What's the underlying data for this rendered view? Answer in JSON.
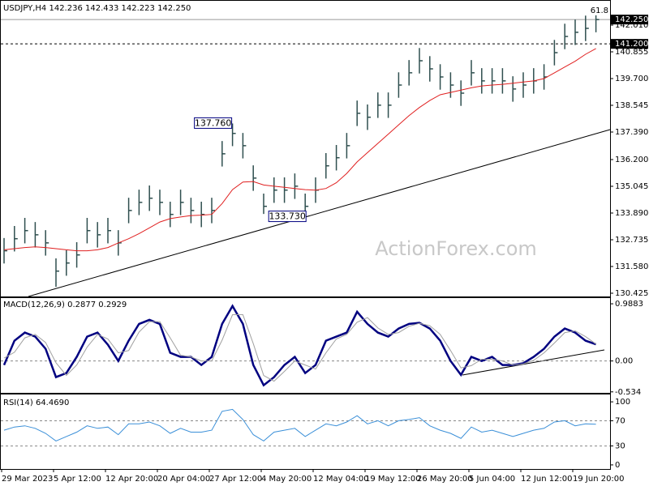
{
  "watermark": "ActionForex.com",
  "chart_data": [
    {
      "type": "ohlc",
      "title": "USDJPY,H4  142.236 142.433 142.223 142.250",
      "color": "#2f4f4f",
      "high": [
        132.81,
        133.33,
        133.68,
        133.5,
        133.15,
        131.93,
        132.28,
        132.63,
        133.68,
        133.5,
        133.68,
        133.15,
        134.55,
        134.9,
        135.08,
        134.9,
        134.38,
        134.9,
        134.55,
        134.38,
        134.55,
        137.0,
        137.76,
        137.35,
        135.95,
        134.73,
        135.43,
        135.43,
        135.6,
        134.73,
        135.43,
        136.48,
        136.83,
        137.35,
        138.75,
        138.58,
        139.1,
        139.1,
        139.97,
        140.5,
        141.02,
        140.67,
        140.32,
        139.97,
        139.62,
        140.5,
        140.15,
        140.15,
        140.15,
        139.8,
        139.97,
        140.15,
        140.32,
        141.37,
        142.07,
        142.25,
        142.42,
        142.433
      ],
      "low": [
        131.71,
        132.23,
        132.58,
        132.4,
        132.05,
        130.7,
        131.18,
        131.53,
        132.58,
        132.4,
        132.58,
        132.05,
        133.45,
        133.8,
        133.98,
        133.8,
        133.28,
        133.8,
        133.45,
        133.28,
        133.45,
        135.9,
        136.78,
        136.25,
        134.85,
        133.85,
        134.33,
        134.33,
        134.5,
        133.73,
        134.33,
        135.38,
        135.73,
        136.25,
        137.65,
        137.48,
        138.0,
        138.0,
        138.87,
        139.4,
        139.92,
        139.57,
        139.22,
        138.87,
        138.52,
        139.4,
        139.05,
        139.05,
        139.05,
        138.7,
        138.87,
        139.05,
        139.22,
        140.27,
        140.97,
        141.15,
        141.32,
        141.7
      ],
      "close": [
        132.26,
        132.78,
        133.13,
        132.95,
        132.6,
        131.38,
        131.73,
        132.08,
        133.13,
        132.95,
        133.13,
        132.6,
        134.0,
        134.35,
        134.53,
        134.35,
        133.83,
        134.35,
        134.0,
        133.83,
        134.0,
        136.45,
        137.33,
        136.8,
        135.4,
        134.18,
        134.88,
        134.88,
        135.05,
        134.18,
        134.88,
        135.93,
        136.28,
        136.8,
        138.2,
        138.03,
        138.55,
        138.55,
        139.42,
        139.95,
        140.47,
        140.12,
        139.77,
        139.42,
        139.07,
        139.95,
        139.6,
        139.6,
        139.6,
        139.25,
        139.42,
        139.6,
        139.77,
        140.82,
        141.52,
        141.7,
        141.87,
        142.25
      ],
      "ma": {
        "color": "#e02020",
        "values": [
          132.3,
          132.35,
          132.4,
          132.43,
          132.4,
          132.35,
          132.3,
          132.26,
          132.26,
          132.3,
          132.4,
          132.6,
          132.78,
          133.0,
          133.25,
          133.5,
          133.65,
          133.72,
          133.78,
          133.8,
          133.83,
          134.3,
          134.9,
          135.23,
          135.25,
          135.1,
          135.05,
          135.0,
          134.95,
          134.9,
          134.88,
          134.95,
          135.2,
          135.6,
          136.1,
          136.5,
          136.9,
          137.3,
          137.7,
          138.1,
          138.45,
          138.75,
          139.0,
          139.1,
          139.2,
          139.3,
          139.38,
          139.42,
          139.45,
          139.5,
          139.55,
          139.6,
          139.7,
          139.95,
          140.2,
          140.45,
          140.75,
          141.0
        ]
      },
      "ylim": [
        130.285,
        142.465
      ],
      "yticks": [
        {
          "value": 142.01,
          "label": "142.010"
        },
        140.855,
        {
          "value": 139.7,
          "label": "139.700"
        },
        138.545,
        {
          "value": 137.39,
          "label": "137.390"
        },
        {
          "value": 136.2,
          "label": "136.200"
        },
        135.045,
        {
          "value": 133.89,
          "label": "133.890"
        },
        132.735,
        {
          "value": 131.58,
          "label": "131.580"
        },
        130.425
      ],
      "levels": [
        {
          "value": 142.25,
          "label": "142.250"
        },
        {
          "value": 141.2,
          "label": "141.200"
        }
      ],
      "fib_level": 61.8,
      "annotations": [
        {
          "value": 137.76,
          "label": "137.760"
        },
        {
          "value": 133.73,
          "label": "133.730"
        }
      ]
    },
    {
      "type": "line",
      "title": "MACD(12,26,9) 0.2877 0.2929",
      "series": [
        {
          "color": "#000080",
          "values": [
            -0.07,
            0.35,
            0.49,
            0.42,
            0.21,
            -0.28,
            -0.21,
            0.07,
            0.42,
            0.49,
            0.28,
            0,
            0.35,
            0.64,
            0.71,
            0.64,
            0.14,
            0.07,
            0.07,
            -0.07,
            0.07,
            0.64,
            0.95,
            0.64,
            -0.07,
            -0.42,
            -0.28,
            -0.07,
            0.07,
            -0.21,
            -0.07,
            0.35,
            0.42,
            0.49,
            0.85,
            0.64,
            0.49,
            0.42,
            0.56,
            0.64,
            0.66,
            0.56,
            0.35,
            0,
            -0.24,
            0.07,
            0,
            0.07,
            -0.07,
            -0.07,
            -0.04,
            0.07,
            0.21,
            0.42,
            0.56,
            0.49,
            0.35,
            0.2877
          ]
        },
        {
          "color": "#a0a0a0",
          "values": [
            0.05,
            0.15,
            0.4,
            0.46,
            0.32,
            -0.03,
            -0.25,
            -0.07,
            0.24,
            0.46,
            0.38,
            0.14,
            0.18,
            0.5,
            0.68,
            0.68,
            0.4,
            0.1,
            0.07,
            0,
            0,
            0.36,
            0.8,
            0.8,
            0.3,
            -0.25,
            -0.35,
            -0.18,
            0,
            -0.07,
            -0.14,
            0.14,
            0.38,
            0.46,
            0.67,
            0.75,
            0.57,
            0.46,
            0.49,
            0.6,
            0.65,
            0.61,
            0.46,
            0.18,
            -0.12,
            -0.08,
            0.03,
            0.03,
            0,
            -0.07,
            -0.05,
            0.01,
            0.14,
            0.31,
            0.49,
            0.52,
            0.42,
            0.2929
          ]
        }
      ],
      "ylim": [
        -0.551,
        1.087
      ],
      "yticks": [
        0.9883,
        {
          "value": 0,
          "label": "0.00"
        },
        -0.534
      ],
      "zero_line": true
    },
    {
      "type": "line",
      "title": "RSI(14) 64.4690",
      "series": [
        {
          "color": "#3a8fd8",
          "values": [
            55,
            60,
            62,
            58,
            50,
            38,
            45,
            52,
            62,
            58,
            60,
            48,
            65,
            65,
            68,
            62,
            50,
            58,
            52,
            52,
            55,
            85,
            88,
            72,
            48,
            38,
            52,
            55,
            58,
            45,
            55,
            65,
            62,
            68,
            78,
            65,
            70,
            62,
            70,
            72,
            75,
            62,
            55,
            50,
            42,
            60,
            52,
            55,
            50,
            45,
            50,
            55,
            58,
            68,
            70,
            62,
            65,
            64.469
          ]
        }
      ],
      "ylim": [
        -6.5,
        110.4
      ],
      "yticks": [
        100,
        70,
        30,
        0
      ],
      "levels": [
        70,
        30
      ],
      "categories": [
        "29 Mar 2023",
        null,
        null,
        null,
        null,
        "5 Apr 12:00",
        null,
        null,
        null,
        null,
        "12 Apr 20:00",
        null,
        null,
        null,
        null,
        "20 Apr 04:00",
        null,
        null,
        null,
        null,
        "27 Apr 12:00",
        null,
        null,
        null,
        null,
        "4 May 20:00",
        null,
        null,
        null,
        null,
        "12 May 04:00",
        null,
        null,
        null,
        null,
        "19 May 12:00",
        null,
        null,
        null,
        null,
        "26 May 20:00",
        null,
        null,
        null,
        null,
        "5 Jun 04:00",
        null,
        null,
        null,
        null,
        "12 Jun 12:00",
        null,
        null,
        null,
        null,
        "19 Jun 20:00",
        null,
        null
      ]
    }
  ]
}
